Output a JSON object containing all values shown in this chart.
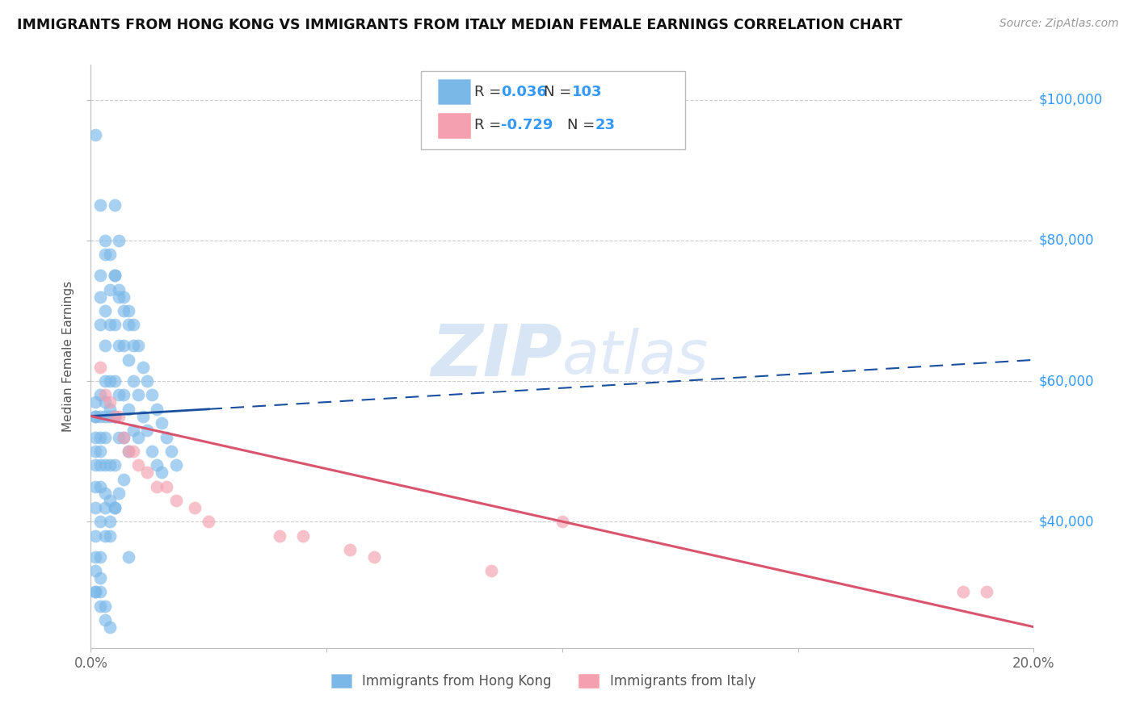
{
  "title": "IMMIGRANTS FROM HONG KONG VS IMMIGRANTS FROM ITALY MEDIAN FEMALE EARNINGS CORRELATION CHART",
  "source": "Source: ZipAtlas.com",
  "ylabel": "Median Female Earnings",
  "xlim": [
    0.0,
    0.2
  ],
  "ylim": [
    22000,
    105000
  ],
  "hk_color": "#7ab8e8",
  "italy_color": "#f4a0b0",
  "hk_line_color": "#1a4fa0",
  "italy_line_color": "#d9546e",
  "right_label_color": "#3399ff",
  "watermark_color": "#d0dff0",
  "legend_R_hk": "0.036",
  "legend_N_hk": "103",
  "legend_R_italy": "-0.729",
  "legend_N_italy": "23",
  "hk_x": [
    0.001,
    0.001,
    0.001,
    0.001,
    0.001,
    0.001,
    0.002,
    0.002,
    0.002,
    0.002,
    0.002,
    0.002,
    0.002,
    0.003,
    0.003,
    0.003,
    0.003,
    0.003,
    0.003,
    0.003,
    0.004,
    0.004,
    0.004,
    0.004,
    0.004,
    0.005,
    0.005,
    0.005,
    0.005,
    0.005,
    0.005,
    0.006,
    0.006,
    0.006,
    0.006,
    0.006,
    0.007,
    0.007,
    0.007,
    0.007,
    0.008,
    0.008,
    0.008,
    0.008,
    0.009,
    0.009,
    0.009,
    0.01,
    0.01,
    0.01,
    0.011,
    0.011,
    0.012,
    0.012,
    0.013,
    0.013,
    0.014,
    0.014,
    0.015,
    0.015,
    0.016,
    0.017,
    0.018,
    0.001,
    0.001,
    0.002,
    0.002,
    0.003,
    0.003,
    0.004,
    0.004,
    0.005,
    0.005,
    0.006,
    0.006,
    0.007,
    0.007,
    0.008,
    0.008,
    0.009,
    0.001,
    0.001,
    0.002,
    0.002,
    0.003,
    0.003,
    0.004,
    0.004,
    0.005,
    0.005,
    0.001,
    0.002,
    0.003,
    0.004,
    0.001,
    0.002,
    0.003,
    0.001,
    0.002,
    0.001,
    0.002,
    0.003,
    0.004
  ],
  "hk_y": [
    57000,
    55000,
    52000,
    50000,
    48000,
    45000,
    75000,
    72000,
    68000,
    55000,
    52000,
    50000,
    48000,
    78000,
    70000,
    65000,
    60000,
    55000,
    52000,
    48000,
    73000,
    68000,
    60000,
    55000,
    48000,
    85000,
    75000,
    68000,
    60000,
    55000,
    48000,
    80000,
    73000,
    65000,
    58000,
    52000,
    72000,
    65000,
    58000,
    52000,
    70000,
    63000,
    56000,
    50000,
    68000,
    60000,
    53000,
    65000,
    58000,
    52000,
    62000,
    55000,
    60000,
    53000,
    58000,
    50000,
    56000,
    48000,
    54000,
    47000,
    52000,
    50000,
    48000,
    95000,
    30000,
    85000,
    35000,
    80000,
    38000,
    78000,
    40000,
    75000,
    42000,
    72000,
    44000,
    70000,
    46000,
    68000,
    35000,
    65000,
    55000,
    42000,
    58000,
    45000,
    57000,
    44000,
    56000,
    43000,
    55000,
    42000,
    38000,
    40000,
    42000,
    38000,
    30000,
    32000,
    28000,
    35000,
    30000,
    33000,
    28000,
    26000,
    25000
  ],
  "italy_x": [
    0.002,
    0.003,
    0.004,
    0.005,
    0.006,
    0.007,
    0.008,
    0.009,
    0.01,
    0.012,
    0.014,
    0.016,
    0.018,
    0.022,
    0.025,
    0.04,
    0.045,
    0.055,
    0.06,
    0.085,
    0.1,
    0.185,
    0.19
  ],
  "italy_y": [
    62000,
    58000,
    57000,
    55000,
    55000,
    52000,
    50000,
    50000,
    48000,
    47000,
    45000,
    45000,
    43000,
    42000,
    40000,
    38000,
    38000,
    36000,
    35000,
    33000,
    40000,
    30000,
    30000
  ],
  "hk_trend": [
    55000,
    63000
  ],
  "italy_trend": [
    55000,
    25000
  ]
}
